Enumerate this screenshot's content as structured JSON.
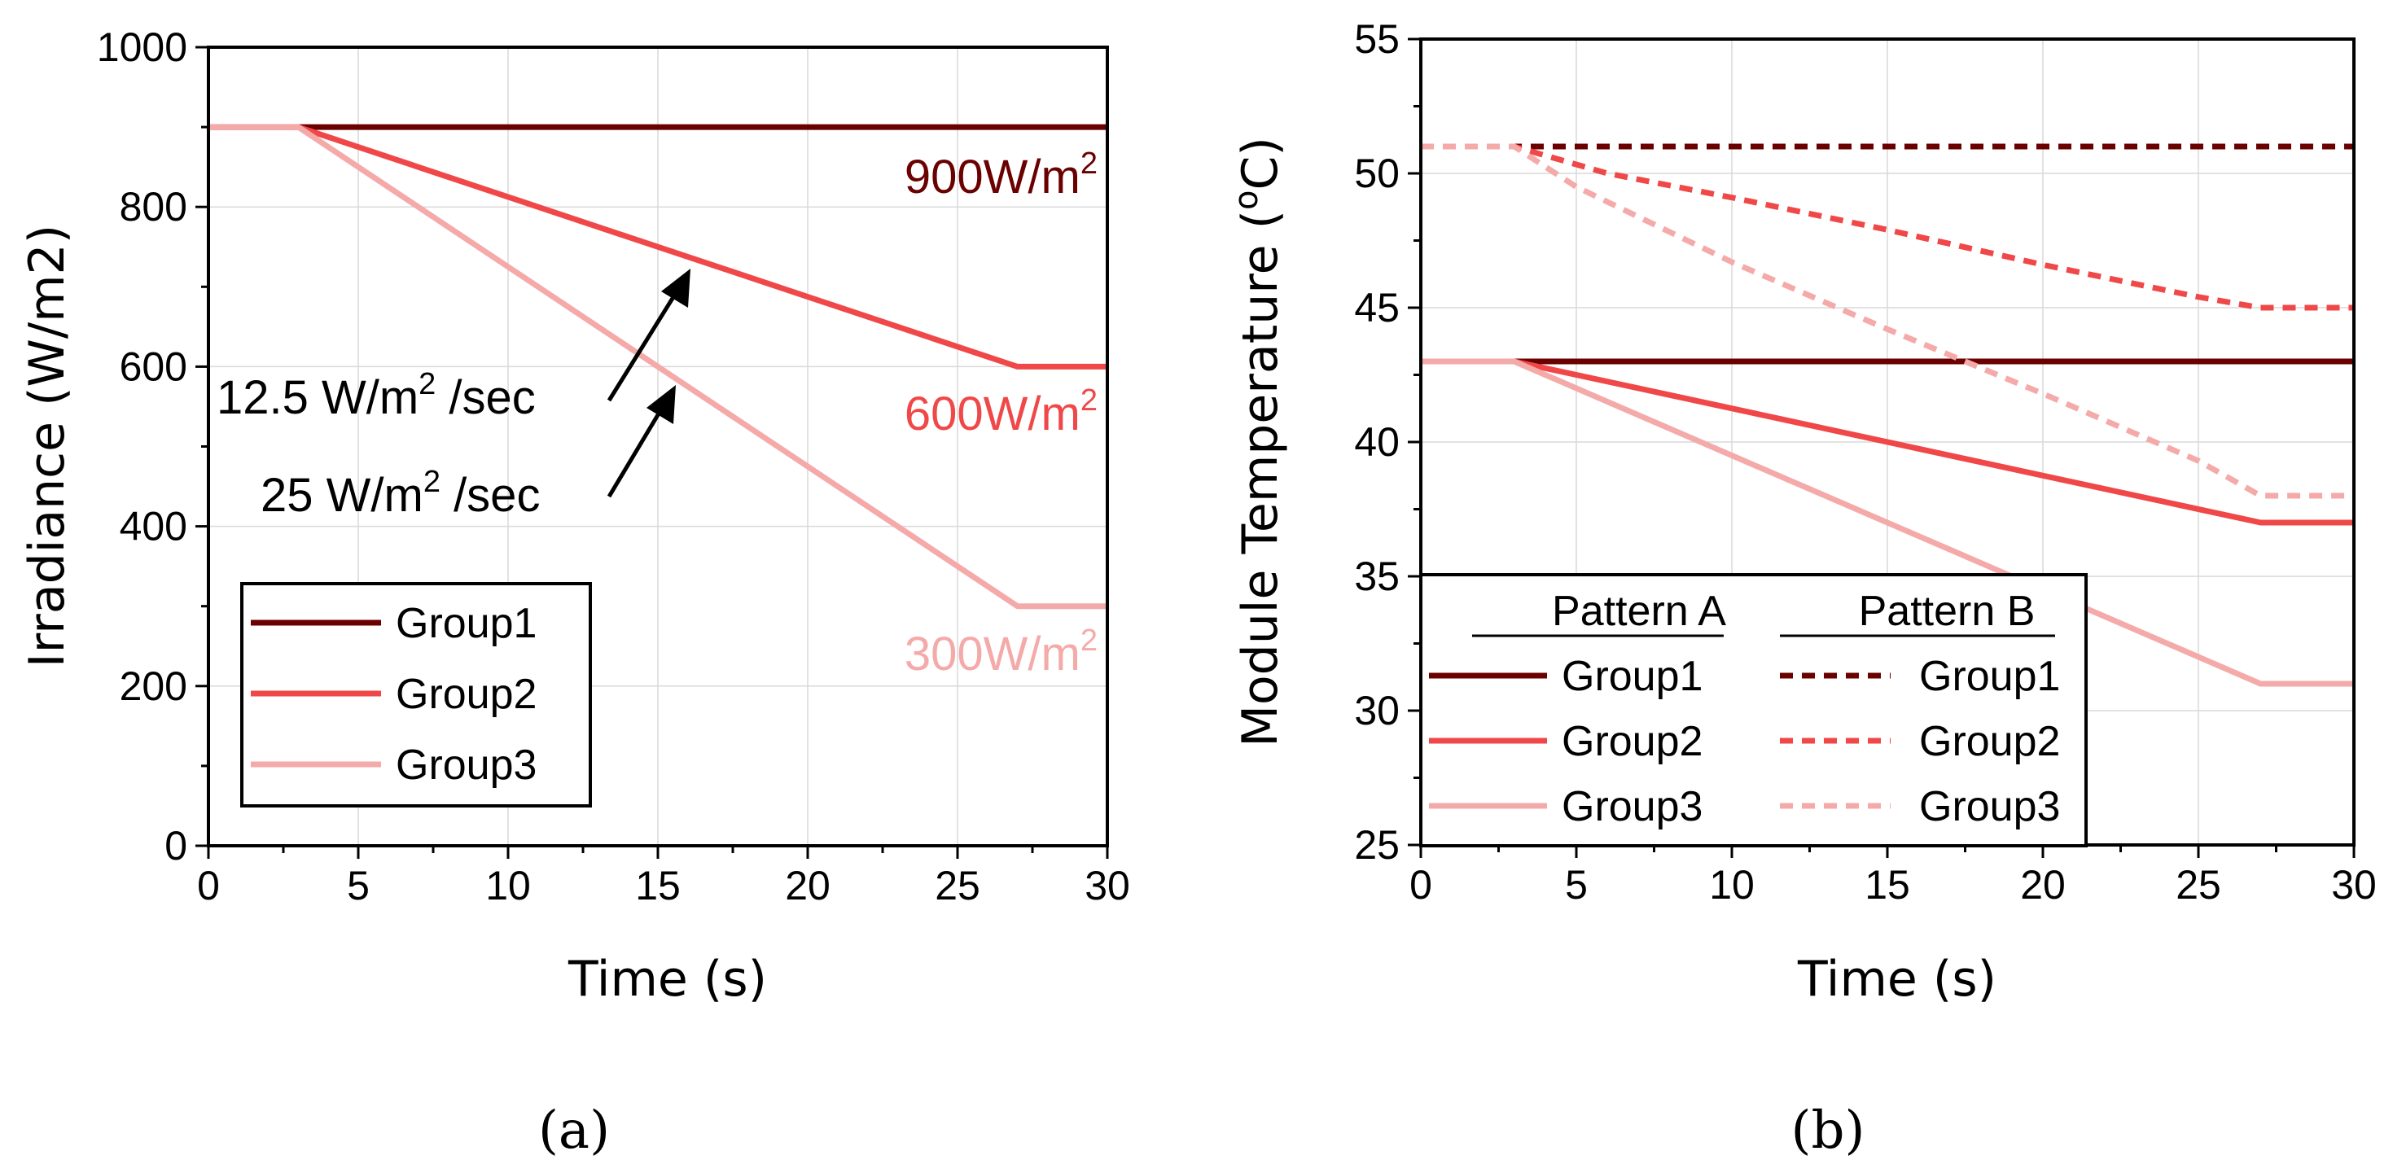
{
  "chart_data": [
    {
      "type": "line",
      "panel_label": "(a)",
      "xlabel": "Time (s)",
      "ylabel": "Irradiance (W/m2)",
      "xlim": [
        0,
        30
      ],
      "ylim": [
        0,
        1000
      ],
      "xticks": [
        0,
        5,
        10,
        15,
        20,
        25,
        30
      ],
      "yticks": [
        0,
        200,
        400,
        600,
        800,
        1000
      ],
      "grid": true,
      "legend_position": "bottom-left",
      "series": [
        {
          "name": "Group1",
          "color": "#6b0000",
          "dash": "solid",
          "x": [
            0,
            3,
            27,
            30
          ],
          "y": [
            900,
            900,
            900,
            900
          ]
        },
        {
          "name": "Group2",
          "color": "#f04848",
          "dash": "solid",
          "x": [
            0,
            3,
            27,
            30
          ],
          "y": [
            900,
            900,
            600,
            600
          ]
        },
        {
          "name": "Group3",
          "color": "#f5aaaa",
          "dash": "solid",
          "x": [
            0,
            3,
            27,
            30
          ],
          "y": [
            900,
            900,
            300,
            300
          ]
        }
      ],
      "annotations": [
        {
          "text": "900W/m",
          "sup": "2",
          "color": "#6b0000"
        },
        {
          "text": "600W/m",
          "sup": "2",
          "color": "#f04848"
        },
        {
          "text": "300W/m",
          "sup": "2",
          "color": "#f5aaaa"
        },
        {
          "text_a": "12.5 W/m",
          "sup": "2",
          "text_b": " /sec",
          "color": "#000000"
        },
        {
          "text_a": "25 W/m",
          "sup": "2",
          "text_b": " /sec",
          "color": "#000000"
        }
      ]
    },
    {
      "type": "line",
      "panel_label": "(b)",
      "xlabel": "Time (s)",
      "ylabel_a": "Module Temperature (",
      "ylabel_sup": "o",
      "ylabel_b": "C)",
      "xlim": [
        0,
        30
      ],
      "ylim": [
        25,
        55
      ],
      "xticks": [
        0,
        5,
        10,
        15,
        20,
        25,
        30
      ],
      "yticks": [
        25,
        30,
        35,
        40,
        45,
        50,
        55
      ],
      "grid": true,
      "legend_position": "bottom-left",
      "legend_headers": [
        "Pattern A",
        "Pattern B"
      ],
      "series": [
        {
          "name": "Group1",
          "pattern": "Pattern A",
          "color": "#6b0000",
          "dash": "solid",
          "x": [
            0,
            3,
            27,
            30
          ],
          "y": [
            43,
            43,
            43,
            43
          ]
        },
        {
          "name": "Group2",
          "pattern": "Pattern A",
          "color": "#f04848",
          "dash": "solid",
          "x": [
            0,
            3,
            27,
            30
          ],
          "y": [
            43,
            43,
            37,
            37
          ]
        },
        {
          "name": "Group3",
          "pattern": "Pattern A",
          "color": "#f5aaaa",
          "dash": "solid",
          "x": [
            0,
            3,
            27,
            30
          ],
          "y": [
            43,
            43,
            31,
            31
          ]
        },
        {
          "name": "Group1",
          "pattern": "Pattern B",
          "color": "#6b0000",
          "dash": "dashed",
          "x": [
            0,
            3,
            27,
            30
          ],
          "y": [
            51,
            51,
            51,
            51
          ]
        },
        {
          "name": "Group2",
          "pattern": "Pattern B",
          "color": "#f04848",
          "dash": "dashed",
          "x": [
            0,
            3,
            6,
            10,
            15,
            20,
            25,
            27,
            30
          ],
          "y": [
            51,
            51,
            50,
            49.1,
            47.9,
            46.6,
            45.4,
            45,
            45
          ]
        },
        {
          "name": "Group3",
          "pattern": "Pattern B",
          "color": "#f5aaaa",
          "dash": "dashed",
          "x": [
            0,
            3,
            5,
            10,
            15,
            20,
            25,
            27,
            30
          ],
          "y": [
            51,
            51,
            49.5,
            46.7,
            44.2,
            41.8,
            39.3,
            38,
            38
          ]
        }
      ]
    }
  ]
}
